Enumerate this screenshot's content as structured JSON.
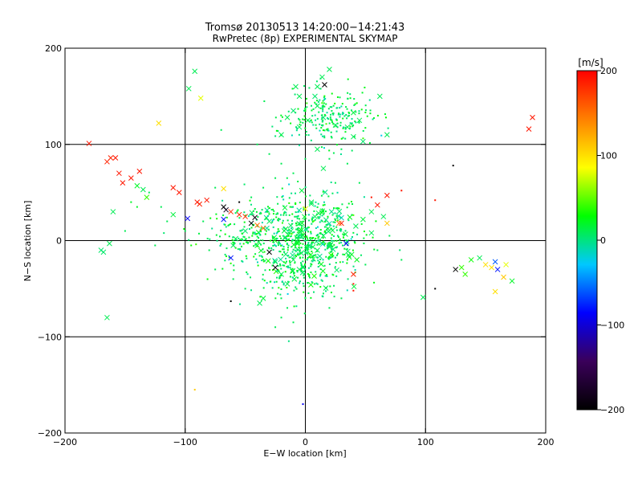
{
  "chart_data": {
    "type": "scatter",
    "title": "Tromsø 20130513 14:20:00−14:21:43",
    "subtitle": "RwPretec (8p) EXPERIMENTAL SKYMAP",
    "xlabel": "E−W location [km]",
    "ylabel": "N−S location [km]",
    "xlim": [
      -200,
      200
    ],
    "ylim": [
      -200,
      200
    ],
    "xticks": [
      -200,
      -100,
      0,
      100,
      200
    ],
    "yticks": [
      -200,
      -100,
      0,
      100,
      200
    ],
    "grid": true,
    "colorbar": {
      "label": "[m/s]",
      "range": [
        -200,
        200
      ],
      "ticks": [
        200,
        100,
        0,
        -100,
        -200
      ],
      "colormap": [
        "#000000",
        "#3a005a",
        "#0000ff",
        "#00c8ff",
        "#00ff00",
        "#ffff00",
        "#ff8000",
        "#ff0000"
      ]
    },
    "marker_styles": [
      "dot",
      "cross"
    ],
    "points_cross": [
      {
        "x": -180,
        "y": 101,
        "v": 190
      },
      {
        "x": -165,
        "y": 82,
        "v": 185
      },
      {
        "x": -162,
        "y": 86,
        "v": 185
      },
      {
        "x": -158,
        "y": 86,
        "v": 190
      },
      {
        "x": -155,
        "y": 70,
        "v": 190
      },
      {
        "x": -152,
        "y": 60,
        "v": 190
      },
      {
        "x": -145,
        "y": 65,
        "v": 190
      },
      {
        "x": -138,
        "y": 72,
        "v": 190
      },
      {
        "x": -140,
        "y": 57,
        "v": 20
      },
      {
        "x": -135,
        "y": 53,
        "v": 10
      },
      {
        "x": -132,
        "y": 45,
        "v": 40
      },
      {
        "x": -160,
        "y": 30,
        "v": 10
      },
      {
        "x": -163,
        "y": -3,
        "v": 10
      },
      {
        "x": -168,
        "y": -12,
        "v": 5
      },
      {
        "x": -170,
        "y": -10,
        "v": 5
      },
      {
        "x": -165,
        "y": -80,
        "v": 10
      },
      {
        "x": -122,
        "y": 122,
        "v": 100
      },
      {
        "x": -110,
        "y": 55,
        "v": 190
      },
      {
        "x": -105,
        "y": 50,
        "v": 190
      },
      {
        "x": -98,
        "y": 23,
        "v": -90
      },
      {
        "x": -90,
        "y": 40,
        "v": 190
      },
      {
        "x": -88,
        "y": 38,
        "v": 185
      },
      {
        "x": -82,
        "y": 42,
        "v": 190
      },
      {
        "x": -110,
        "y": 27,
        "v": 15
      },
      {
        "x": -97,
        "y": 158,
        "v": 10
      },
      {
        "x": -92,
        "y": 176,
        "v": 10
      },
      {
        "x": -87,
        "y": 148,
        "v": 80
      },
      {
        "x": -68,
        "y": 54,
        "v": 100
      },
      {
        "x": -68,
        "y": 35,
        "v": -200
      },
      {
        "x": -66,
        "y": 32,
        "v": -180
      },
      {
        "x": -62,
        "y": 30,
        "v": 180
      },
      {
        "x": -55,
        "y": 27,
        "v": 185
      },
      {
        "x": -50,
        "y": 25,
        "v": 180
      },
      {
        "x": -45,
        "y": 18,
        "v": -200
      },
      {
        "x": -40,
        "y": 16,
        "v": 150
      },
      {
        "x": -35,
        "y": 13,
        "v": 150
      },
      {
        "x": -42,
        "y": 24,
        "v": -190
      },
      {
        "x": -68,
        "y": 22,
        "v": -80
      },
      {
        "x": -62,
        "y": -18,
        "v": -80
      },
      {
        "x": -40,
        "y": -5,
        "v": 20
      },
      {
        "x": -30,
        "y": -12,
        "v": -200
      },
      {
        "x": -25,
        "y": -28,
        "v": -190
      },
      {
        "x": -60,
        "y": -5,
        "v": 10
      },
      {
        "x": -58,
        "y": 2,
        "v": 10
      },
      {
        "x": -50,
        "y": 10,
        "v": 5
      },
      {
        "x": -30,
        "y": 20,
        "v": 10
      },
      {
        "x": -25,
        "y": -22,
        "v": 10
      },
      {
        "x": -20,
        "y": -35,
        "v": 10
      },
      {
        "x": -15,
        "y": -45,
        "v": 10
      },
      {
        "x": -10,
        "y": -20,
        "v": 10
      },
      {
        "x": -5,
        "y": -30,
        "v": 10
      },
      {
        "x": 5,
        "y": 40,
        "v": 10
      },
      {
        "x": 8,
        "y": 25,
        "v": 10
      },
      {
        "x": 10,
        "y": -10,
        "v": 10
      },
      {
        "x": 15,
        "y": 5,
        "v": 10
      },
      {
        "x": -12,
        "y": 10,
        "v": 10
      },
      {
        "x": -3,
        "y": 52,
        "v": 15
      },
      {
        "x": 0,
        "y": 33,
        "v": 80
      },
      {
        "x": -35,
        "y": -60,
        "v": 15
      },
      {
        "x": -38,
        "y": -65,
        "v": 10
      },
      {
        "x": 10,
        "y": 160,
        "v": 10
      },
      {
        "x": 20,
        "y": 178,
        "v": 10
      },
      {
        "x": 16,
        "y": 162,
        "v": -200
      },
      {
        "x": 14,
        "y": 170,
        "v": 10
      },
      {
        "x": -8,
        "y": 160,
        "v": 10
      },
      {
        "x": -5,
        "y": 150,
        "v": 10
      },
      {
        "x": -10,
        "y": 135,
        "v": 5
      },
      {
        "x": -15,
        "y": 128,
        "v": 10
      },
      {
        "x": 2,
        "y": 125,
        "v": 15
      },
      {
        "x": 10,
        "y": 140,
        "v": 10
      },
      {
        "x": 15,
        "y": 128,
        "v": 5
      },
      {
        "x": 25,
        "y": 120,
        "v": 10
      },
      {
        "x": 35,
        "y": 118,
        "v": 10
      },
      {
        "x": 40,
        "y": 108,
        "v": 10
      },
      {
        "x": 48,
        "y": 103,
        "v": 5
      },
      {
        "x": 45,
        "y": 125,
        "v": 10
      },
      {
        "x": 40,
        "y": 133,
        "v": 15
      },
      {
        "x": -5,
        "y": 118,
        "v": 10
      },
      {
        "x": -20,
        "y": 110,
        "v": 10
      },
      {
        "x": 8,
        "y": 150,
        "v": 5
      },
      {
        "x": 62,
        "y": 150,
        "v": 10
      },
      {
        "x": 68,
        "y": 110,
        "v": 10
      },
      {
        "x": 65,
        "y": 25,
        "v": 10
      },
      {
        "x": 55,
        "y": 30,
        "v": 10
      },
      {
        "x": 48,
        "y": 22,
        "v": 15
      },
      {
        "x": 30,
        "y": 18,
        "v": 190
      },
      {
        "x": 28,
        "y": 18,
        "v": 150
      },
      {
        "x": 34,
        "y": -3,
        "v": -90
      },
      {
        "x": 40,
        "y": -35,
        "v": 185
      },
      {
        "x": 36,
        "y": -15,
        "v": 10
      },
      {
        "x": 42,
        "y": 15,
        "v": 10
      },
      {
        "x": 55,
        "y": 8,
        "v": 10
      },
      {
        "x": 60,
        "y": 37,
        "v": 190
      },
      {
        "x": 68,
        "y": 47,
        "v": 190
      },
      {
        "x": 68,
        "y": 18,
        "v": 110
      },
      {
        "x": 98,
        "y": -59,
        "v": 10
      },
      {
        "x": 15,
        "y": 75,
        "v": 10
      },
      {
        "x": 10,
        "y": 95,
        "v": 10
      },
      {
        "x": 125,
        "y": -30,
        "v": -200
      },
      {
        "x": 130,
        "y": -28,
        "v": 40
      },
      {
        "x": 133,
        "y": -35,
        "v": 40
      },
      {
        "x": 138,
        "y": -20,
        "v": 30
      },
      {
        "x": 145,
        "y": -18,
        "v": 10
      },
      {
        "x": 150,
        "y": -25,
        "v": 100
      },
      {
        "x": 155,
        "y": -28,
        "v": 100
      },
      {
        "x": 158,
        "y": -22,
        "v": -60
      },
      {
        "x": 160,
        "y": -30,
        "v": -80
      },
      {
        "x": 165,
        "y": -38,
        "v": 110
      },
      {
        "x": 167,
        "y": -25,
        "v": 80
      },
      {
        "x": 172,
        "y": -42,
        "v": 20
      },
      {
        "x": 158,
        "y": -53,
        "v": 100
      },
      {
        "x": 186,
        "y": 116,
        "v": 190
      },
      {
        "x": 189,
        "y": 128,
        "v": 190
      }
    ],
    "points_dot": [
      {
        "x": -92,
        "y": -155,
        "v": 110
      },
      {
        "x": -2,
        "y": -170,
        "v": -90
      },
      {
        "x": 123,
        "y": 78,
        "v": -200
      },
      {
        "x": 108,
        "y": 42,
        "v": 190
      },
      {
        "x": 108,
        "y": -50,
        "v": -200
      },
      {
        "x": 80,
        "y": 52,
        "v": 190
      },
      {
        "x": 40,
        "y": -45,
        "v": 190
      },
      {
        "x": 40,
        "y": -52,
        "v": 190
      },
      {
        "x": -62,
        "y": -63,
        "v": -200
      },
      {
        "x": -95,
        "y": -5,
        "v": 30
      },
      {
        "x": -75,
        "y": 55,
        "v": 10
      },
      {
        "x": 55,
        "y": 45,
        "v": 190
      },
      {
        "x": -55,
        "y": 40,
        "v": -200
      },
      {
        "x": -145,
        "y": 40,
        "v": 20
      },
      {
        "x": -140,
        "y": 35,
        "v": 20
      },
      {
        "x": -130,
        "y": 50,
        "v": 10
      },
      {
        "x": -120,
        "y": 35,
        "v": 10
      },
      {
        "x": -115,
        "y": 20,
        "v": 10
      },
      {
        "x": -150,
        "y": 10,
        "v": 10
      },
      {
        "x": -125,
        "y": -5,
        "v": 10
      },
      {
        "x": -100,
        "y": 10,
        "v": 10
      },
      {
        "x": -80,
        "y": -10,
        "v": 10
      },
      {
        "x": -75,
        "y": -30,
        "v": 10
      },
      {
        "x": -85,
        "y": 20,
        "v": 10
      },
      {
        "x": -60,
        "y": -40,
        "v": 10
      },
      {
        "x": -50,
        "y": -50,
        "v": 10
      },
      {
        "x": -20,
        "y": -80,
        "v": 10
      },
      {
        "x": -15,
        "y": -70,
        "v": 10
      },
      {
        "x": -25,
        "y": -90,
        "v": 10
      },
      {
        "x": -10,
        "y": -85,
        "v": 10
      },
      {
        "x": 0,
        "y": -60,
        "v": 10
      },
      {
        "x": 15,
        "y": -55,
        "v": 10
      },
      {
        "x": 20,
        "y": -70,
        "v": 10
      },
      {
        "x": 30,
        "y": -60,
        "v": 10
      },
      {
        "x": 50,
        "y": -25,
        "v": 10
      },
      {
        "x": 60,
        "y": -10,
        "v": 10
      },
      {
        "x": 70,
        "y": 5,
        "v": 10
      },
      {
        "x": 80,
        "y": -20,
        "v": 10
      },
      {
        "x": -70,
        "y": 115,
        "v": 10
      },
      {
        "x": -40,
        "y": 100,
        "v": 10
      },
      {
        "x": -30,
        "y": 90,
        "v": 10
      },
      {
        "x": -20,
        "y": 80,
        "v": 10
      },
      {
        "x": -10,
        "y": 70,
        "v": 10
      },
      {
        "x": 0,
        "y": 85,
        "v": 10
      },
      {
        "x": 20,
        "y": 85,
        "v": 10
      },
      {
        "x": 30,
        "y": 95,
        "v": 10
      },
      {
        "x": 35,
        "y": 80,
        "v": 10
      },
      {
        "x": 45,
        "y": 60,
        "v": 10
      },
      {
        "x": 25,
        "y": 60,
        "v": 10
      },
      {
        "x": -35,
        "y": 55,
        "v": 10
      },
      {
        "x": -25,
        "y": 65,
        "v": 10
      },
      {
        "x": -45,
        "y": 45,
        "v": 10
      }
    ],
    "clusters": [
      {
        "cx": 0,
        "cy": 0,
        "sx": 24,
        "sy": 26,
        "n": 520,
        "marker": "dot",
        "v": 10
      },
      {
        "cx": 0,
        "cy": 0,
        "sx": 20,
        "sy": 22,
        "n": 90,
        "marker": "cross",
        "v": 10
      },
      {
        "cx": -35,
        "cy": 5,
        "sx": 22,
        "sy": 18,
        "n": 120,
        "marker": "dot",
        "v": 10
      },
      {
        "cx": 20,
        "cy": 127,
        "sx": 18,
        "sy": 14,
        "n": 230,
        "marker": "dot",
        "v": 10
      },
      {
        "cx": -12,
        "cy": -40,
        "sx": 10,
        "sy": 12,
        "n": 40,
        "marker": "dot",
        "v": 10
      },
      {
        "cx": -60,
        "cy": 8,
        "sx": 16,
        "sy": 12,
        "n": 40,
        "marker": "dot",
        "v": 10
      }
    ]
  }
}
